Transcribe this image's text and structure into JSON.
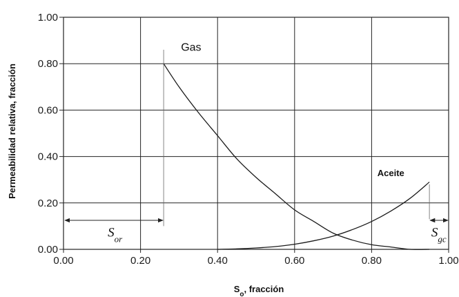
{
  "chart_data": {
    "type": "line",
    "xlabel": "S",
    "xlabel_sub": "o",
    "xlabel_rest": ", fracción",
    "ylabel": "Permeabilidad relativa, fracción",
    "xlim": [
      0.0,
      1.0
    ],
    "ylim": [
      0.0,
      1.0
    ],
    "x_ticks": [
      "0.00",
      "0.20",
      "0.40",
      "0.60",
      "0.80",
      "1.00"
    ],
    "y_ticks": [
      "0.00",
      "0.20",
      "0.40",
      "0.60",
      "0.80",
      "1.00"
    ],
    "grid": true,
    "series": [
      {
        "name": "Gas",
        "color": "#1a1a1a",
        "x": [
          0.26,
          0.3,
          0.35,
          0.4,
          0.45,
          0.5,
          0.55,
          0.6,
          0.65,
          0.7,
          0.75,
          0.8,
          0.85,
          0.9,
          0.95
        ],
        "y": [
          0.8,
          0.7,
          0.59,
          0.49,
          0.39,
          0.31,
          0.24,
          0.17,
          0.12,
          0.07,
          0.04,
          0.02,
          0.01,
          0.0,
          0.0
        ]
      },
      {
        "name": "Aceite",
        "color": "#1a1a1a",
        "x": [
          0.4,
          0.45,
          0.5,
          0.55,
          0.6,
          0.65,
          0.7,
          0.75,
          0.8,
          0.85,
          0.9,
          0.95
        ],
        "y": [
          0.0,
          0.002,
          0.006,
          0.012,
          0.022,
          0.037,
          0.057,
          0.085,
          0.12,
          0.165,
          0.22,
          0.29
        ]
      }
    ],
    "annotations": [
      {
        "text": "S",
        "sub": "or",
        "range": [
          0.0,
          0.26
        ]
      },
      {
        "text": "S",
        "sub": "gc",
        "range": [
          0.95,
          1.0
        ]
      }
    ]
  }
}
